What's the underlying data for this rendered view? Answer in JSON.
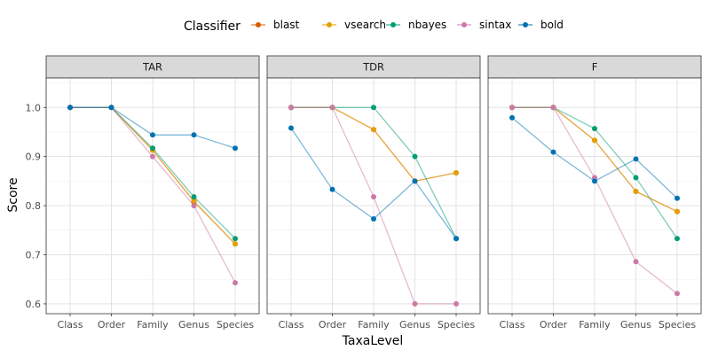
{
  "chart_data": {
    "type": "line",
    "xlabel": "TaxaLevel",
    "ylabel": "Score",
    "categories": [
      "Class",
      "Order",
      "Family",
      "Genus",
      "Species"
    ],
    "ylim": [
      0.58,
      1.06
    ],
    "yticks": [
      0.6,
      0.7,
      0.8,
      0.9,
      1.0
    ],
    "ytick_labels": [
      "0.6",
      "0.7",
      "0.8",
      "0.9",
      "1.0"
    ],
    "grid": true,
    "legend": {
      "title": "Classifier",
      "position": "top",
      "entries": [
        "blast",
        "vsearch",
        "nbayes",
        "sintax",
        "bold"
      ]
    },
    "colors": {
      "blast": "#D55E00",
      "vsearch": "#E69F00",
      "nbayes": "#009E73",
      "sintax": "#CC79A7",
      "bold": "#0072B2"
    },
    "panels": [
      {
        "title": "TAR",
        "series": [
          {
            "name": "blast",
            "values": [
              1.0,
              1.0,
              0.913,
              0.808,
              0.722
            ]
          },
          {
            "name": "vsearch",
            "values": [
              1.0,
              1.0,
              0.913,
              0.81,
              0.722
            ]
          },
          {
            "name": "nbayes",
            "values": [
              1.0,
              1.0,
              0.917,
              0.818,
              0.733
            ]
          },
          {
            "name": "sintax",
            "values": [
              1.0,
              1.0,
              0.9,
              0.8,
              0.643
            ]
          },
          {
            "name": "bold",
            "values": [
              1.0,
              1.0,
              0.944,
              0.944,
              0.917
            ]
          }
        ]
      },
      {
        "title": "TDR",
        "series": [
          {
            "name": "blast",
            "values": [
              1.0,
              1.0,
              0.955,
              0.85,
              0.867
            ]
          },
          {
            "name": "vsearch",
            "values": [
              1.0,
              1.0,
              0.955,
              0.85,
              0.867
            ]
          },
          {
            "name": "nbayes",
            "values": [
              1.0,
              1.0,
              1.0,
              0.9,
              0.733
            ]
          },
          {
            "name": "sintax",
            "values": [
              1.0,
              1.0,
              0.818,
              0.6,
              0.6
            ]
          },
          {
            "name": "bold",
            "values": [
              0.958,
              0.833,
              0.773,
              0.85,
              0.733
            ]
          }
        ]
      },
      {
        "title": "F",
        "series": [
          {
            "name": "blast",
            "values": [
              1.0,
              1.0,
              0.933,
              0.829,
              0.788
            ]
          },
          {
            "name": "vsearch",
            "values": [
              1.0,
              1.0,
              0.933,
              0.829,
              0.788
            ]
          },
          {
            "name": "nbayes",
            "values": [
              1.0,
              1.0,
              0.957,
              0.857,
              0.733
            ]
          },
          {
            "name": "sintax",
            "values": [
              1.0,
              1.0,
              0.857,
              0.686,
              0.621
            ]
          },
          {
            "name": "bold",
            "values": [
              0.979,
              0.909,
              0.85,
              0.895,
              0.815
            ]
          }
        ]
      }
    ]
  }
}
